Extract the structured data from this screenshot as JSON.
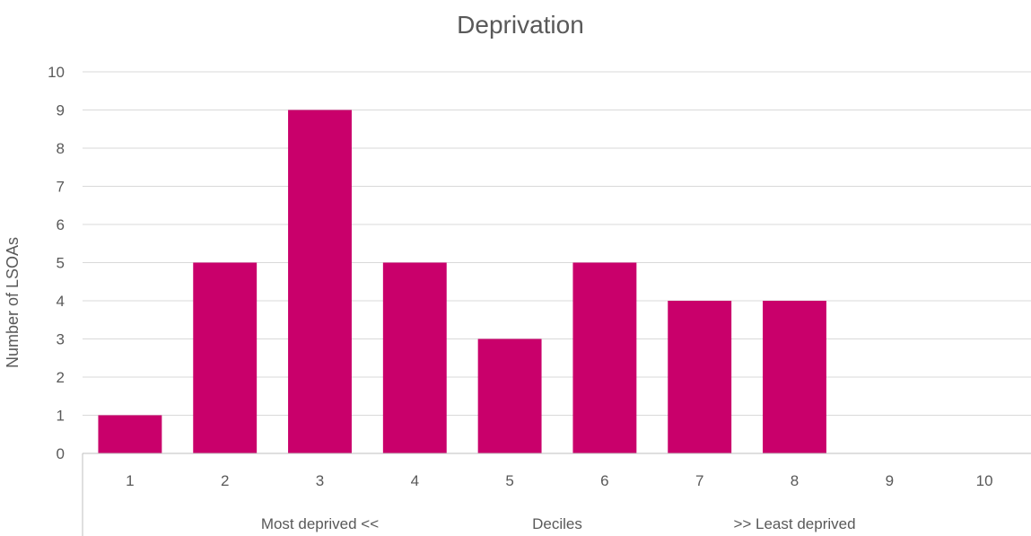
{
  "chart_data": {
    "type": "bar",
    "title": "Deprivation",
    "ylabel": "Number of LSOAs",
    "xlabel": "",
    "categories": [
      "1",
      "2",
      "3",
      "4",
      "5",
      "6",
      "7",
      "8",
      "9",
      "10"
    ],
    "values": [
      1,
      5,
      9,
      5,
      3,
      5,
      4,
      4,
      0,
      0
    ],
    "ylim": [
      0,
      10
    ],
    "yticks": [
      "0",
      "1",
      "2",
      "3",
      "4",
      "5",
      "6",
      "7",
      "8",
      "9",
      "10"
    ],
    "category_groups": [
      "Most deprived <<",
      "Deciles",
      ">> Least deprived"
    ],
    "grid": true,
    "legend": "none",
    "bar_color": "#c9006b"
  }
}
